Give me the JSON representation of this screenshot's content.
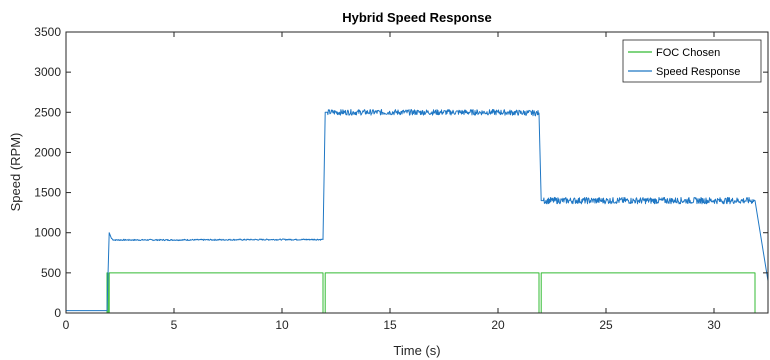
{
  "chart_data": {
    "type": "line",
    "title": "Hybrid Speed Response",
    "xlabel": "Time (s)",
    "ylabel": "Speed (RPM)",
    "xlim": [
      0,
      32.5
    ],
    "ylim": [
      0,
      3500
    ],
    "x_ticks": [
      0,
      5,
      10,
      15,
      20,
      25,
      30
    ],
    "y_ticks": [
      0,
      500,
      1000,
      1500,
      2000,
      2500,
      3000,
      3500
    ],
    "grid": false,
    "legend_position": "top-right",
    "series": [
      {
        "name": "FOC Chosen",
        "color": "#33bb33",
        "x": [
          0,
          1.9,
          1.9,
          1.95,
          1.95,
          2.0,
          2.0,
          2.05,
          2.05,
          11.9,
          11.9,
          12.0,
          12.0,
          21.9,
          21.9,
          22.0,
          22.0,
          31.9,
          31.9,
          32.5
        ],
        "y": [
          0,
          0,
          500,
          500,
          0,
          0,
          500,
          500,
          500,
          500,
          0,
          0,
          500,
          500,
          0,
          0,
          500,
          500,
          0,
          0
        ]
      },
      {
        "name": "Speed Response",
        "color": "#1f77c4",
        "x": [
          0,
          1.9,
          2.0,
          2.1,
          2.2,
          5,
          10,
          11.9,
          12.0,
          12.1,
          15,
          20,
          21.9,
          22.0,
          22.1,
          25,
          30,
          31.9,
          32.5
        ],
        "y": [
          30,
          30,
          1000,
          930,
          910,
          910,
          915,
          915,
          2500,
          2500,
          2500,
          2500,
          2490,
          1400,
          1400,
          1400,
          1400,
          1400,
          400
        ],
        "noise": [
          0,
          0,
          0,
          10,
          8,
          8,
          8,
          8,
          0,
          35,
          35,
          35,
          35,
          0,
          40,
          40,
          40,
          40,
          0
        ]
      }
    ]
  }
}
